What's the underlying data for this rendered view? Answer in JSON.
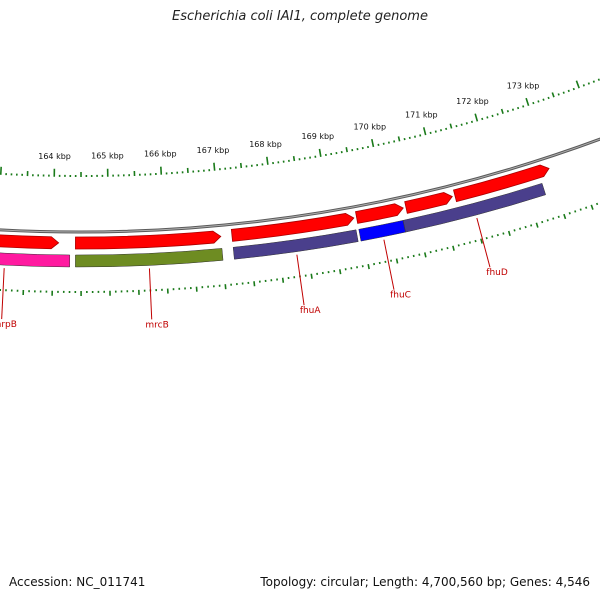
{
  "title": "Escherichia coli IAI1, complete genome",
  "accession": "Accession: NC_011741",
  "summary": "Topology: circular; Length: 4,700,560 bp; Genes: 4,546",
  "colors": {
    "backbone": "#7a7a7a",
    "cds_arrow": "#ff0000",
    "tick": "#1a7a1a",
    "label": "#c00000"
  },
  "features": [
    {
      "name": "hrpB",
      "start_kbp": 162.0,
      "end_kbp": 164.3,
      "color": "#ff1aa0"
    },
    {
      "name": "mrcB",
      "start_kbp": 164.4,
      "end_kbp": 167.0,
      "color": "#6e8c22"
    },
    {
      "name": "fhuA",
      "start_kbp": 167.2,
      "end_kbp": 169.4,
      "color": "#4a3f8c"
    },
    {
      "name": "fhuC",
      "start_kbp": 169.45,
      "end_kbp": 170.25,
      "color": "#0000ff"
    },
    {
      "name": "fhuD",
      "start_kbp": 170.25,
      "end_kbp": 172.8,
      "color": "#4a3f8c"
    }
  ],
  "cds_arrows": [
    {
      "start_kbp": 162.0,
      "end_kbp": 164.1
    },
    {
      "start_kbp": 164.4,
      "end_kbp": 167.0
    },
    {
      "start_kbp": 167.2,
      "end_kbp": 169.4
    },
    {
      "start_kbp": 169.45,
      "end_kbp": 170.3
    },
    {
      "start_kbp": 170.35,
      "end_kbp": 171.2
    },
    {
      "start_kbp": 171.25,
      "end_kbp": 173.0
    }
  ],
  "kbp_labels": [
    "164 kbp",
    "165 kbp",
    "166 kbp",
    "167 kbp",
    "168 kbp",
    "169 kbp",
    "170 kbp",
    "171 kbp",
    "172 kbp",
    "173 kbp"
  ],
  "kbp_values": [
    164,
    165,
    166,
    167,
    168,
    169,
    170,
    171,
    172,
    173
  ]
}
